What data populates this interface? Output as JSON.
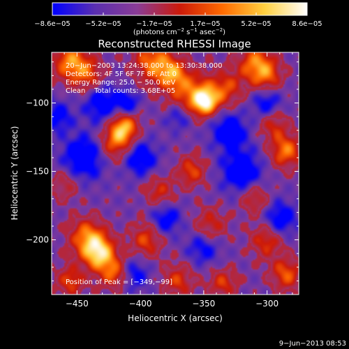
{
  "chart_data": {
    "type": "heatmap",
    "title": "Reconstructed RHESSI Image",
    "xlabel": "Heliocentric X (arcsec)",
    "ylabel": "Heliocentric Y (arcsec)",
    "xlim": [
      -470,
      -275
    ],
    "ylim": [
      -240,
      -63
    ],
    "xticks": [
      -450,
      -400,
      -350,
      -300
    ],
    "yticks": [
      -100,
      -150,
      -200
    ],
    "xtick_labels": [
      "−450",
      "−400",
      "−350",
      "−300"
    ],
    "ytick_labels": [
      "−100",
      "−150",
      "−200"
    ],
    "colorbar": {
      "range": [
        -8.6e-05,
        8.6e-05
      ],
      "tick_labels": [
        "−8.6e−05",
        "−5.2e−05",
        "−1.7e−05",
        "1.7e−05",
        "5.2e−05",
        "8.6e−05"
      ],
      "unit_prefix": "(photons cm",
      "unit_exp1": "−2",
      "unit_mid": " s",
      "unit_exp2": "−1",
      "unit_mid2": " asec",
      "unit_exp3": "−2",
      "unit_suffix": ")",
      "colors": [
        "#0000ff",
        "#5a2fb0",
        "#8a3c96",
        "#cc1a0a",
        "#ff6a00",
        "#ffd040",
        "#ffffff"
      ]
    },
    "annotations": {
      "time_range": "20−Jun−2003 13:24:38.000 to 13:30:38.000",
      "detectors": "Detectors: 4F 5F 6F 7F 8F, Att 0",
      "energy": "Energy Range: 25.0 − 50.0 keV",
      "clean": "Clean    Total counts: 3.68E+05",
      "peak": "Position of Peak = [−349,−99]"
    },
    "blobs": [
      {
        "x": -349,
        "y": -99,
        "amp": 1.0,
        "s": 7
      },
      {
        "x": -362,
        "y": -92,
        "amp": 0.6,
        "s": 12
      },
      {
        "x": -333,
        "y": -90,
        "amp": 0.55,
        "s": 10
      },
      {
        "x": -413,
        "y": -118,
        "amp": 0.85,
        "s": 8
      },
      {
        "x": -420,
        "y": -130,
        "amp": 0.55,
        "s": 9
      },
      {
        "x": -432,
        "y": -210,
        "amp": 0.95,
        "s": 9
      },
      {
        "x": -442,
        "y": -198,
        "amp": 0.7,
        "s": 10
      },
      {
        "x": -420,
        "y": -225,
        "amp": 0.6,
        "s": 8
      },
      {
        "x": -455,
        "y": -70,
        "amp": 0.75,
        "s": 10
      },
      {
        "x": -440,
        "y": -80,
        "amp": 0.5,
        "s": 9
      },
      {
        "x": -390,
        "y": -70,
        "amp": 0.7,
        "s": 11
      },
      {
        "x": -375,
        "y": -78,
        "amp": 0.55,
        "s": 8
      },
      {
        "x": -310,
        "y": -70,
        "amp": 0.6,
        "s": 10
      },
      {
        "x": -300,
        "y": -80,
        "amp": 0.55,
        "s": 9
      },
      {
        "x": -285,
        "y": -135,
        "amp": 0.7,
        "s": 9
      },
      {
        "x": -295,
        "y": -115,
        "amp": 0.45,
        "s": 8
      },
      {
        "x": -360,
        "y": -150,
        "amp": 0.55,
        "s": 8
      },
      {
        "x": -385,
        "y": -165,
        "amp": 0.45,
        "s": 8
      },
      {
        "x": -395,
        "y": -200,
        "amp": 0.55,
        "s": 9
      },
      {
        "x": -345,
        "y": -190,
        "amp": 0.5,
        "s": 9
      },
      {
        "x": -310,
        "y": -170,
        "amp": 0.5,
        "s": 8
      },
      {
        "x": -300,
        "y": -200,
        "amp": 0.55,
        "s": 9
      },
      {
        "x": -285,
        "y": -225,
        "amp": 0.6,
        "s": 9
      },
      {
        "x": -370,
        "y": -230,
        "amp": 0.5,
        "s": 9
      },
      {
        "x": -335,
        "y": -232,
        "amp": 0.5,
        "s": 8
      },
      {
        "x": -460,
        "y": -160,
        "amp": 0.4,
        "s": 8
      },
      {
        "x": -455,
        "y": -230,
        "amp": 0.55,
        "s": 8
      },
      {
        "x": -430,
        "y": -100,
        "amp": -0.55,
        "s": 10
      },
      {
        "x": -445,
        "y": -140,
        "amp": -0.65,
        "s": 11
      },
      {
        "x": -410,
        "y": -100,
        "amp": -0.5,
        "s": 6
      },
      {
        "x": -400,
        "y": -140,
        "amp": -0.55,
        "s": 9
      },
      {
        "x": -330,
        "y": -120,
        "amp": -0.55,
        "s": 10
      },
      {
        "x": -320,
        "y": -150,
        "amp": -0.6,
        "s": 11
      },
      {
        "x": -350,
        "y": -205,
        "amp": -0.45,
        "s": 9
      },
      {
        "x": -380,
        "y": -185,
        "amp": -0.5,
        "s": 8
      },
      {
        "x": -300,
        "y": -100,
        "amp": -0.5,
        "s": 8
      },
      {
        "x": -290,
        "y": -185,
        "amp": -0.55,
        "s": 9
      },
      {
        "x": -405,
        "y": -225,
        "amp": -0.45,
        "s": 8
      },
      {
        "x": -370,
        "y": -110,
        "amp": -0.4,
        "s": 7
      },
      {
        "x": -465,
        "y": -110,
        "amp": -0.45,
        "s": 8
      }
    ]
  },
  "footer": {
    "timestamp": "9−Jun−2013 08:53"
  }
}
